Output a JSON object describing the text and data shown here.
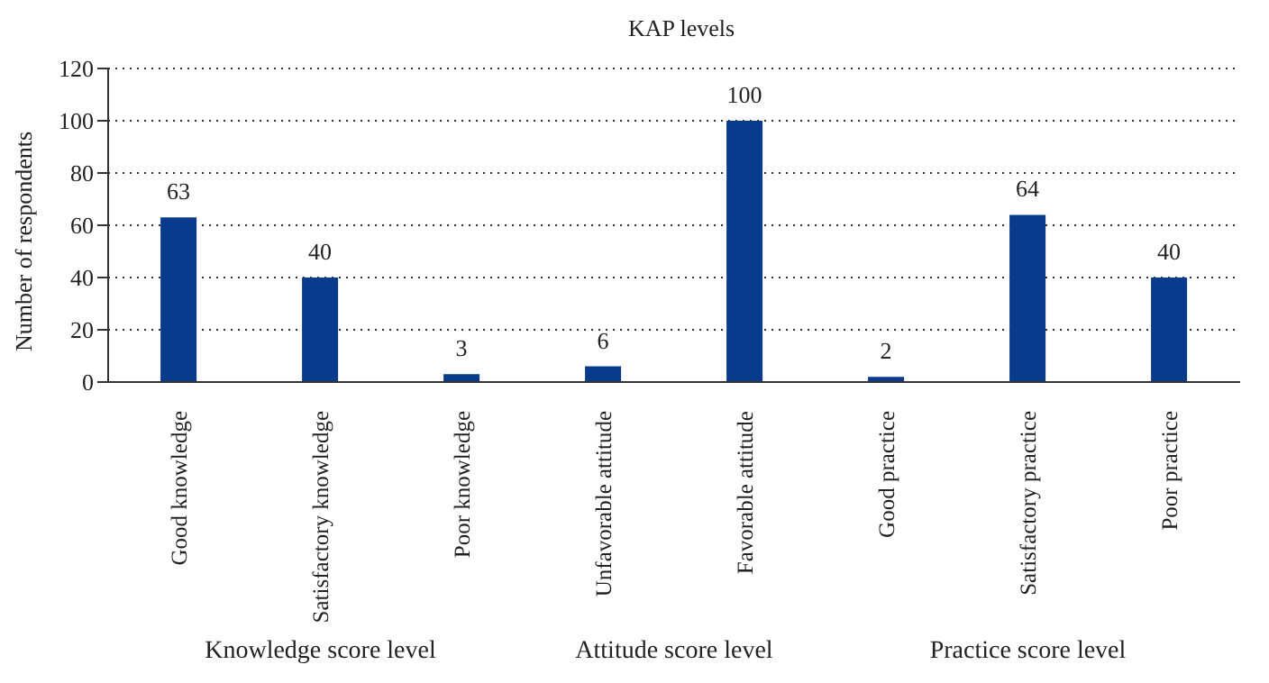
{
  "chart_data": {
    "type": "bar",
    "title": "KAP levels",
    "ylabel": "Number of respondents",
    "categories": [
      "Good knowledge",
      "Satisfactory knowledge",
      "Poor knowledge",
      "Unfavorable attitude",
      "Favorable attitude",
      "Good practice",
      "Satisfactory practice",
      "Poor practice"
    ],
    "values": [
      63,
      40,
      3,
      6,
      100,
      2,
      64,
      40
    ],
    "color": "#0a3a8c",
    "ylim": [
      0,
      120
    ],
    "yticks": [
      0,
      20,
      40,
      60,
      80,
      100,
      120
    ],
    "grid": "y",
    "data_labels": true,
    "legend": false,
    "annotations": [
      "Knowledge score level",
      "Attitude score level",
      "Practice score level"
    ]
  }
}
